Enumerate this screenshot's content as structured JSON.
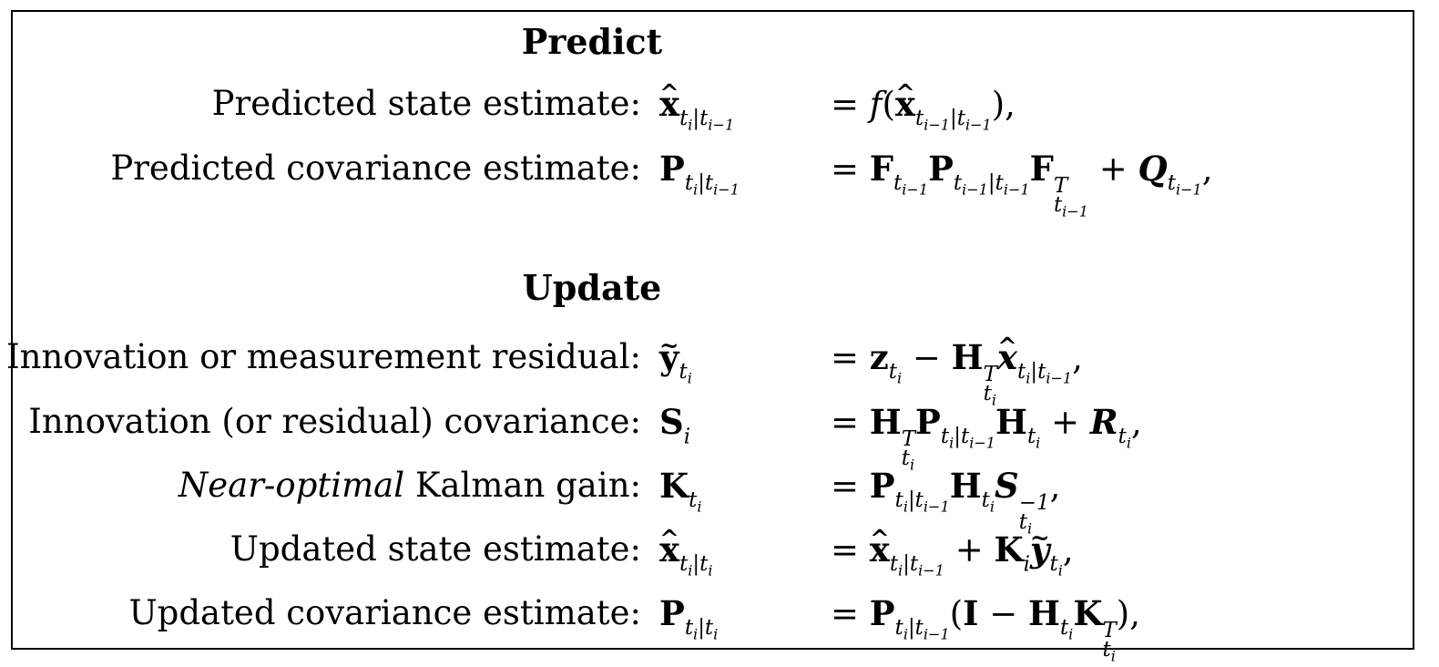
{
  "headings": {
    "predict": "Predict",
    "update": "Update"
  },
  "rows": [
    {
      "label": "Predicted state estimate:",
      "lhs": "x̂_{t_i|t_{i-1}}",
      "rhs": "= f(x̂_{t_{i-1}|t_{i-1}}),"
    },
    {
      "label": "Predicted covariance estimate:",
      "lhs": "P_{t_i|t_{i-1}}",
      "rhs": "= F_{t_{i-1}} P_{t_{i-1}|t_{i-1}} F^T_{t_{i-1}} + Q_{t_{i-1}},"
    },
    {
      "label": "Innovation or measurement residual:",
      "lhs": "ỹ_{t_i}",
      "rhs": "= z_{t_i} − H^T_{t_i} x̂_{t_i|t_{i-1}},"
    },
    {
      "label": "Innovation (or residual) covariance:",
      "lhs": "S_i",
      "rhs": "= H^T_{t_i} P_{t_i|t_{i-1}} H_{t_i} + R_{t_i},"
    },
    {
      "label_italic": "Near-optimal",
      "label": "Kalman gain:",
      "lhs": "K_{t_i}",
      "rhs": "= P_{t_i|t_{i-1}} H_{t_i} S^{-1}_{t_i},"
    },
    {
      "label": "Updated state estimate:",
      "lhs": "x̂_{t_i|t_i}",
      "rhs": "= x̂_{t_i|t_{i-1}} + K_i ỹ_{t_i},"
    },
    {
      "label": "Updated covariance estimate:",
      "lhs": "P_{t_i|t_i}",
      "rhs": "= P_{t_i|t_{i-1}}(I − H_{t_i} K^T_{t_i}),"
    }
  ]
}
